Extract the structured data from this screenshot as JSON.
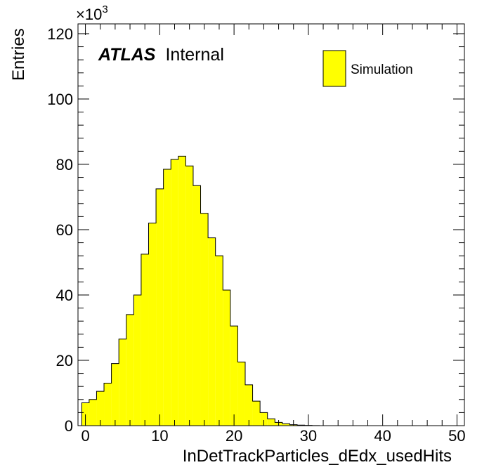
{
  "chart_data": {
    "type": "bar",
    "xlabel": "InDetTrackParticles_dEdx_usedHits",
    "ylabel": "Entries",
    "y_multiplier": "×10",
    "y_multiplier_exp": "3",
    "xlim": [
      -1,
      51
    ],
    "ylim": [
      0,
      123
    ],
    "x_ticks": [
      0,
      10,
      20,
      30,
      40,
      50
    ],
    "x_tick_labels": [
      "0",
      "10",
      "20",
      "30",
      "40",
      "50"
    ],
    "y_ticks": [
      0,
      20,
      40,
      60,
      80,
      100,
      120
    ],
    "y_tick_labels": [
      "0",
      "20",
      "40",
      "60",
      "80",
      "100",
      "120"
    ],
    "bin_width": 1,
    "bin_start": -0.5,
    "values": [
      7,
      8,
      10.5,
      13,
      19,
      26.5,
      34,
      40,
      52.5,
      62,
      72.5,
      78.5,
      81.5,
      82.5,
      79.5,
      73.5,
      65,
      57.5,
      52,
      41.5,
      30.5,
      19.5,
      12.5,
      7.5,
      4,
      2.1,
      1,
      0.6,
      0.3,
      0.15,
      0.07,
      0.03
    ],
    "fill_color": "#ffff00",
    "line_color": "#000000",
    "legend": {
      "position": "top-right",
      "label": "Simulation"
    },
    "annotation": {
      "bold_italic": "ATLAS",
      "normal": "Internal"
    }
  }
}
